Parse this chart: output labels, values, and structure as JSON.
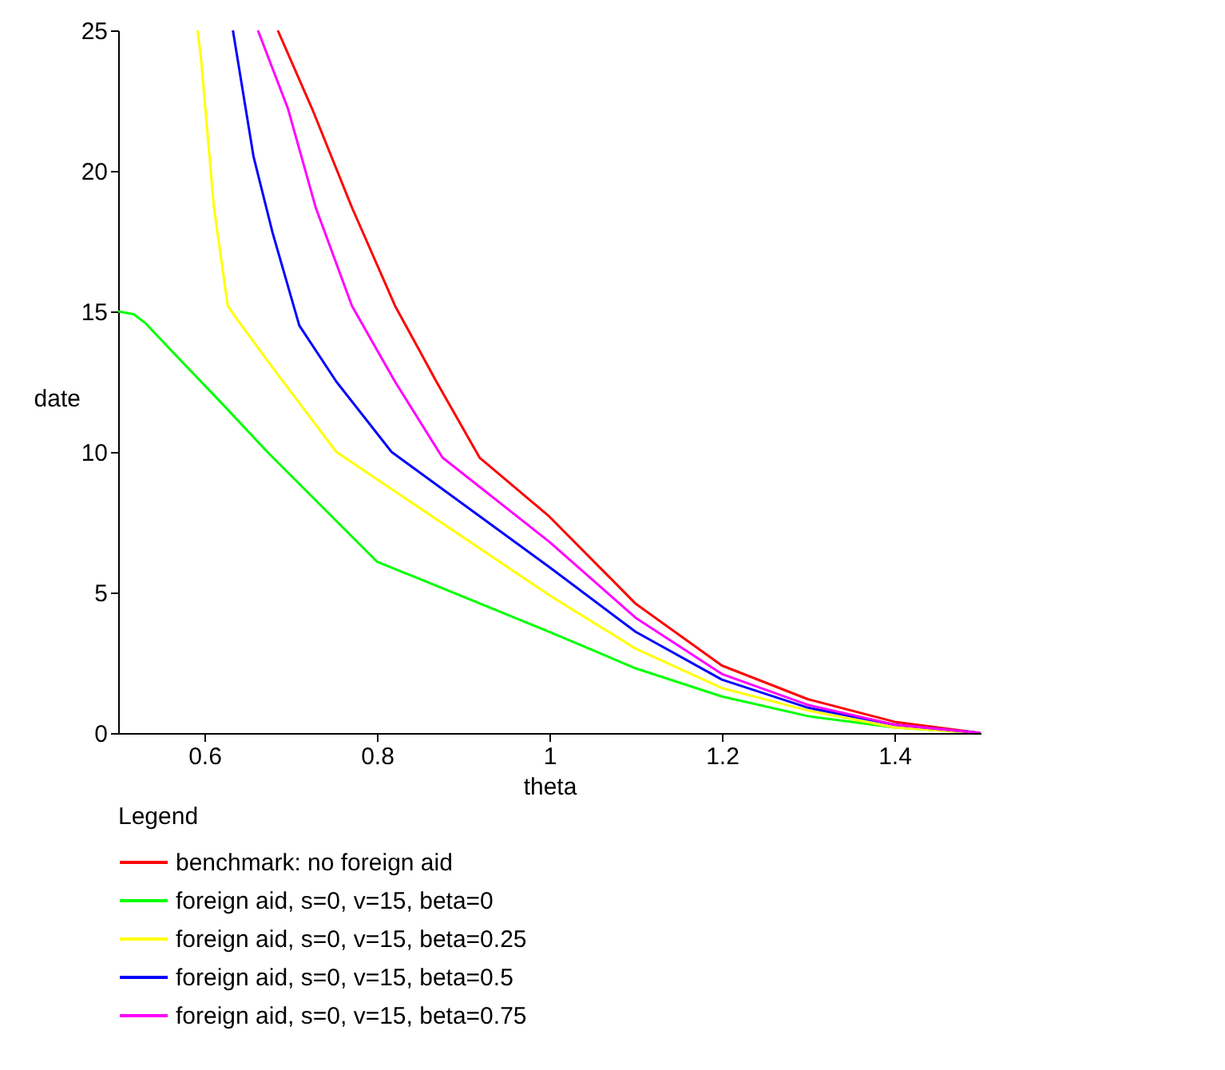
{
  "chart_data": {
    "type": "line",
    "xlabel": "theta",
    "ylabel": "date",
    "legend_title": "Legend",
    "xlim": [
      0.5,
      1.5
    ],
    "ylim": [
      0,
      25
    ],
    "xticks": [
      0.6,
      0.8,
      1,
      1.2,
      1.4
    ],
    "yticks": [
      0,
      5,
      10,
      15,
      20,
      25
    ],
    "grid": false,
    "legend": "bottom",
    "line_style": "solid",
    "marker": "none",
    "series": [
      {
        "name": "benchmark: no foreign aid",
        "color": "#ff0000",
        "x": [
          0.685,
          0.725,
          0.771,
          0.821,
          0.869,
          0.919,
          1,
          1.1,
          1.2,
          1.3,
          1.4,
          1.5
        ],
        "values": [
          25,
          22.2,
          18.7,
          15.2,
          12.5,
          9.8,
          7.7,
          4.6,
          2.4,
          1.2,
          0.4,
          0
        ]
      },
      {
        "name": "foreign aid, s=0, v=15, beta=0",
        "color": "#00ff00",
        "x": [
          0.5,
          0.518,
          0.531,
          0.568,
          0.618,
          0.673,
          0.8,
          1,
          1.1,
          1.2,
          1.3,
          1.4,
          1.5
        ],
        "values": [
          15,
          14.9,
          14.6,
          13.4,
          11.8,
          10,
          6.1,
          3.6,
          2.3,
          1.3,
          0.6,
          0.2,
          0
        ]
      },
      {
        "name": "foreign aid, s=0, v=15, beta=0.25",
        "color": "#ffff00",
        "x": [
          0.592,
          0.596,
          0.611,
          0.627,
          0.636,
          0.679,
          0.753,
          1,
          1.1,
          1.2,
          1.3,
          1.4,
          1.5
        ],
        "values": [
          25,
          24,
          18.7,
          15.2,
          14.8,
          13,
          10,
          4.9,
          3,
          1.6,
          0.8,
          0.2,
          0
        ]
      },
      {
        "name": "foreign aid, s=0, v=15, beta=0.5",
        "color": "#0000ff",
        "x": [
          0.633,
          0.657,
          0.679,
          0.71,
          0.753,
          0.817,
          1,
          1.1,
          1.2,
          1.3,
          1.4,
          1.5
        ],
        "values": [
          25,
          20.5,
          17.8,
          14.5,
          12.5,
          10,
          5.9,
          3.6,
          1.9,
          0.9,
          0.3,
          0
        ]
      },
      {
        "name": "foreign aid, s=0, v=15, beta=0.75",
        "color": "#ff00ff",
        "x": [
          0.662,
          0.697,
          0.729,
          0.771,
          0.821,
          0.876,
          1,
          1.1,
          1.2,
          1.3,
          1.4,
          1.5
        ],
        "values": [
          25,
          22.2,
          18.7,
          15.2,
          12.5,
          9.8,
          6.8,
          4.1,
          2.1,
          1,
          0.3,
          0
        ]
      }
    ]
  }
}
